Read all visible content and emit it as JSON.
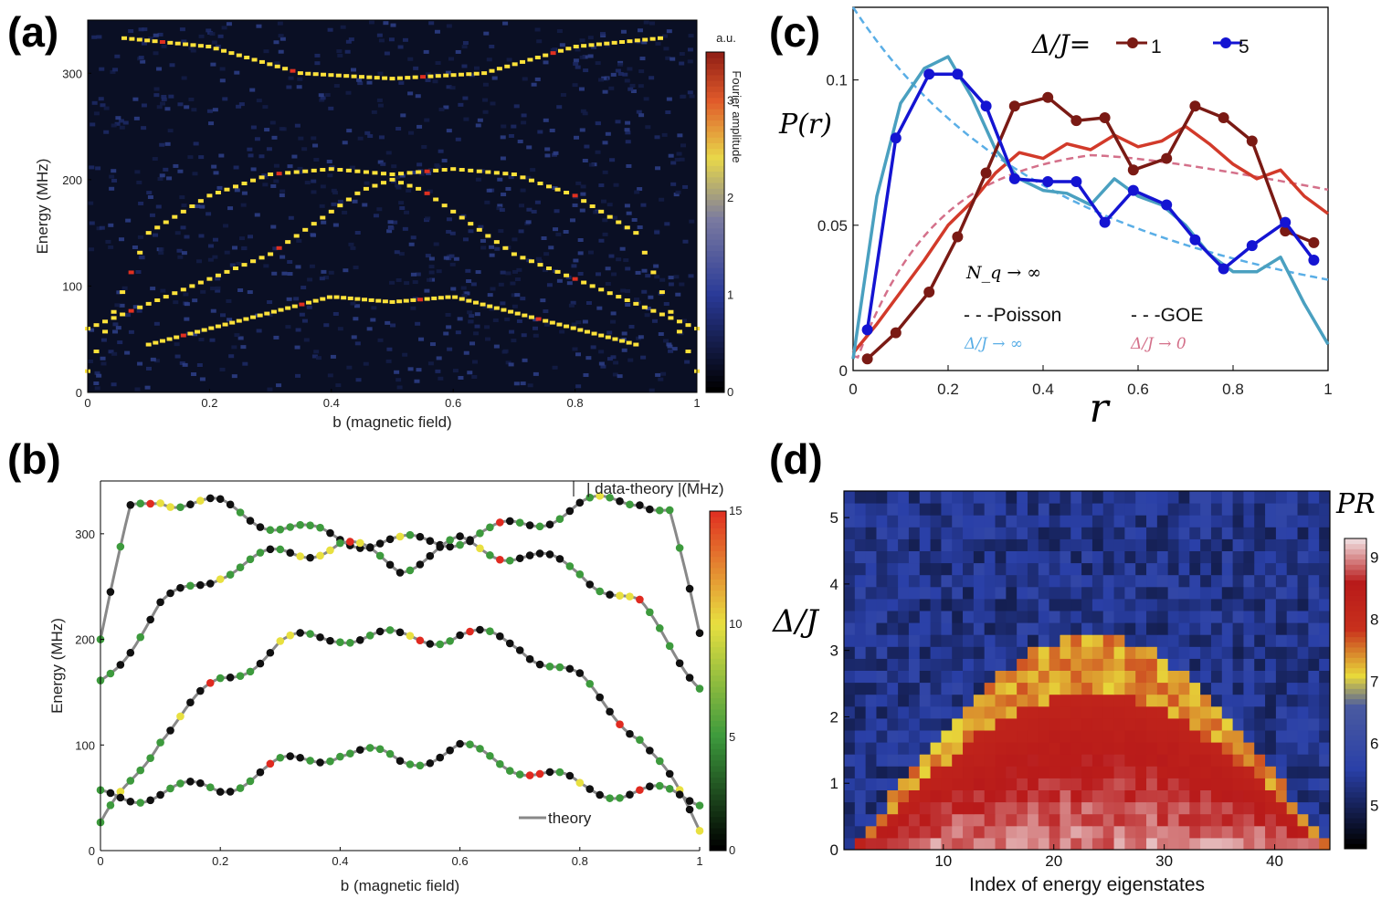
{
  "panels": {
    "a": {
      "label": "(a)"
    },
    "b": {
      "label": "(b)"
    },
    "c": {
      "label": "(c)"
    },
    "d": {
      "label": "(d)"
    }
  },
  "chart_data": [
    {
      "id": "a",
      "type": "heatmap",
      "xlabel": "b (magnetic field)",
      "ylabel": "Energy (MHz)",
      "xlim": [
        0,
        1
      ],
      "ylim": [
        0,
        350
      ],
      "xticks": [
        "0",
        "0.2",
        "0.4",
        "0.6",
        "0.8",
        "1"
      ],
      "yticks": [
        "0",
        "100",
        "200",
        "300"
      ],
      "colorbar": {
        "label": "Fourier amplitude",
        "unit": "a.u.",
        "ticks": [
          "0",
          "1",
          "2",
          "3"
        ],
        "range": [
          0,
          3.5
        ]
      },
      "colors": {
        "background": "#0a0f24",
        "line": "#ffe23a",
        "peak": "#e03020"
      },
      "bands": [
        {
          "name": "",
          "x": [
            0.06,
            0.2,
            0.35,
            0.5,
            0.65,
            0.8,
            0.94
          ],
          "y": [
            333,
            325,
            300,
            295,
            300,
            325,
            333
          ]
        },
        {
          "name": "",
          "x": [
            0.0,
            0.1,
            0.2,
            0.3,
            0.4,
            0.5,
            0.6,
            0.7,
            0.8,
            0.9,
            1.0
          ],
          "y": [
            20,
            150,
            185,
            205,
            210,
            205,
            210,
            205,
            185,
            150,
            20
          ]
        },
        {
          "name": "",
          "x": [
            0.1,
            0.2,
            0.3,
            0.4,
            0.5,
            0.6,
            0.7,
            0.8,
            0.9
          ],
          "y": [
            45,
            60,
            75,
            90,
            85,
            90,
            75,
            60,
            45
          ]
        },
        {
          "name": "",
          "x": [
            0.0,
            0.15,
            0.3,
            0.45,
            0.5,
            0.55,
            0.7,
            0.85,
            1.0
          ],
          "y": [
            60,
            95,
            130,
            190,
            200,
            190,
            130,
            95,
            60
          ]
        }
      ]
    },
    {
      "id": "b",
      "type": "scatter",
      "xlabel": "b (magnetic field)",
      "ylabel": "Energy (MHz)",
      "xlim": [
        0,
        1
      ],
      "ylim": [
        0,
        350
      ],
      "xticks": [
        "0",
        "0.2",
        "0.4",
        "0.6",
        "0.8",
        "1"
      ],
      "yticks": [
        "0",
        "100",
        "200",
        "300"
      ],
      "colorbar": {
        "label": "| data-theory |(MHz)",
        "ticks": [
          "0",
          "5",
          "10",
          "15"
        ],
        "range": [
          0,
          15
        ]
      },
      "legend": {
        "theory": "theory"
      },
      "colors": {
        "theory": "#888888",
        "low": "#101010",
        "mid": "#3d9a3d",
        "high": "#e8e040",
        "max": "#e02a20"
      },
      "bands": [
        {
          "name": "",
          "x": [
            0.0,
            0.05,
            0.1,
            0.2,
            0.35,
            0.5,
            0.65,
            0.8,
            0.9,
            0.95,
            1.0
          ],
          "y": [
            200,
            320,
            335,
            325,
            300,
            290,
            300,
            325,
            335,
            320,
            200
          ]
        },
        {
          "name": "",
          "x": [
            0.0,
            0.1,
            0.2,
            0.3,
            0.4,
            0.5,
            0.6,
            0.7,
            0.8,
            0.9,
            1.0
          ],
          "y": [
            20,
            110,
            160,
            195,
            205,
            200,
            205,
            195,
            160,
            110,
            20
          ]
        },
        {
          "name": "",
          "x": [
            0.0,
            0.1,
            0.2,
            0.3,
            0.4,
            0.5,
            0.6,
            0.7,
            0.8,
            0.9,
            1.0
          ],
          "y": [
            50,
            55,
            60,
            80,
            95,
            85,
            95,
            80,
            60,
            55,
            50
          ]
        },
        {
          "name": "",
          "x": [
            0.0,
            0.1,
            0.2,
            0.3,
            0.4,
            0.5,
            0.6,
            0.7,
            0.8,
            0.9,
            1.0
          ],
          "y": [
            160,
            230,
            265,
            280,
            290,
            270,
            290,
            280,
            265,
            230,
            160
          ]
        }
      ]
    },
    {
      "id": "c",
      "type": "line",
      "xlabel": "r",
      "ylabel": "P(r)",
      "xlim": [
        0,
        1
      ],
      "ylim": [
        0,
        0.125
      ],
      "xticks": [
        "0",
        "0.2",
        "0.4",
        "0.6",
        "0.8",
        "1"
      ],
      "yticks": [
        "0",
        "0.05",
        "0.1"
      ],
      "legend_prefix": "Δ/J=",
      "series": [
        {
          "name": "1",
          "color": "#7a1a14",
          "x": [
            0.03,
            0.09,
            0.16,
            0.22,
            0.28,
            0.34,
            0.41,
            0.47,
            0.53,
            0.59,
            0.66,
            0.72,
            0.78,
            0.84,
            0.91,
            0.97
          ],
          "y": [
            0.004,
            0.013,
            0.027,
            0.046,
            0.068,
            0.091,
            0.094,
            0.086,
            0.087,
            0.069,
            0.073,
            0.091,
            0.087,
            0.079,
            0.048,
            0.044
          ]
        },
        {
          "name": "5",
          "color": "#1414d2",
          "x": [
            0.03,
            0.09,
            0.16,
            0.22,
            0.28,
            0.34,
            0.41,
            0.47,
            0.53,
            0.59,
            0.66,
            0.72,
            0.78,
            0.84,
            0.91,
            0.97
          ],
          "y": [
            0.014,
            0.08,
            0.102,
            0.102,
            0.091,
            0.066,
            0.065,
            0.065,
            0.051,
            0.062,
            0.057,
            0.045,
            0.035,
            0.043,
            0.051,
            0.038
          ]
        }
      ],
      "smooth_curves": [
        {
          "name": "",
          "color": "#d23a2a",
          "x": [
            0.0,
            0.05,
            0.1,
            0.15,
            0.2,
            0.25,
            0.3,
            0.35,
            0.4,
            0.45,
            0.5,
            0.55,
            0.6,
            0.65,
            0.7,
            0.75,
            0.8,
            0.85,
            0.9,
            0.95,
            1.0
          ],
          "y": [
            0.006,
            0.016,
            0.027,
            0.038,
            0.05,
            0.058,
            0.068,
            0.075,
            0.073,
            0.078,
            0.076,
            0.081,
            0.077,
            0.079,
            0.084,
            0.078,
            0.071,
            0.066,
            0.069,
            0.06,
            0.054
          ]
        },
        {
          "name": "",
          "color": "#4aa0c0",
          "x": [
            0.0,
            0.05,
            0.1,
            0.15,
            0.2,
            0.25,
            0.3,
            0.35,
            0.4,
            0.45,
            0.5,
            0.55,
            0.6,
            0.65,
            0.7,
            0.75,
            0.8,
            0.85,
            0.9,
            0.95,
            1.0
          ],
          "y": [
            0.004,
            0.06,
            0.092,
            0.104,
            0.108,
            0.094,
            0.076,
            0.066,
            0.062,
            0.061,
            0.057,
            0.066,
            0.06,
            0.057,
            0.05,
            0.04,
            0.034,
            0.034,
            0.039,
            0.023,
            0.009
          ]
        }
      ],
      "reference_curves": [
        {
          "name": "Poisson",
          "sub": "Δ/J → ∞",
          "color": "#5aaee6"
        },
        {
          "name": "GOE",
          "sub": "Δ/J → 0",
          "color": "#d4708a"
        }
      ],
      "limit_note": "N_q → ∞"
    },
    {
      "id": "d",
      "type": "heatmap",
      "xlabel": "Index of energy eigenstates",
      "ylabel": "Δ/J",
      "xlim": [
        1,
        45
      ],
      "ylim": [
        0,
        5.4
      ],
      "xticks": [
        "10",
        "20",
        "30",
        "40"
      ],
      "yticks": [
        "0",
        "1",
        "2",
        "3",
        "4",
        "5"
      ],
      "colorbar": {
        "label": "PR",
        "ticks": [
          "5",
          "6",
          "7",
          "8",
          "9"
        ],
        "range": [
          4.3,
          9.3
        ]
      },
      "colors": {
        "low": "#000000",
        "blue": "#2a40a8",
        "yellow": "#e8d83a",
        "red": "#b81a1a",
        "high": "#f4eef0"
      }
    }
  ]
}
